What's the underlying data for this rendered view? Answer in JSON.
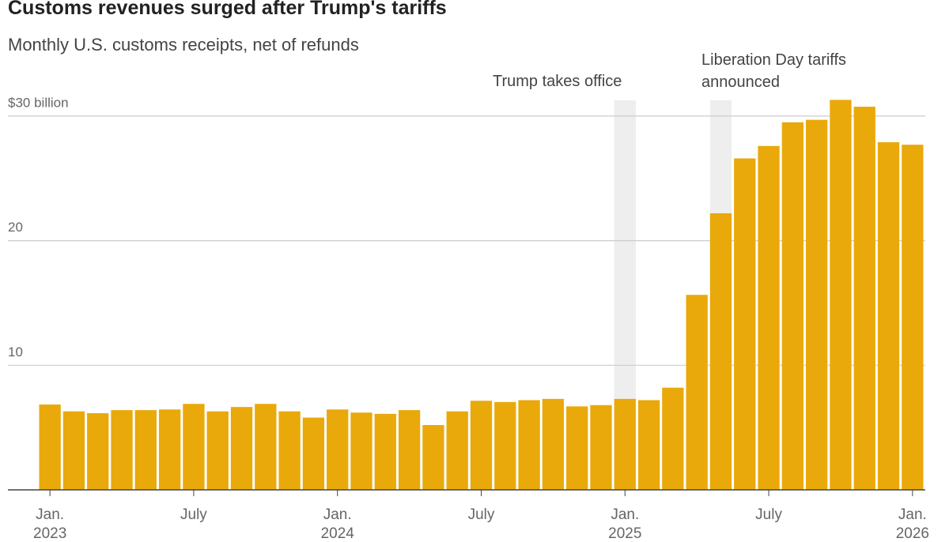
{
  "chart_data": {
    "type": "bar",
    "title": "Customs revenues surged after Trump's tariffs",
    "subtitle": "Monthly U.S. customs receipts, net of refunds",
    "annotations": [
      "Trump takes office",
      "Liberation Day tariffs\nannounced"
    ],
    "categories": [
      "Jan.\n2023",
      null,
      null,
      null,
      null,
      null,
      "July",
      null,
      null,
      null,
      null,
      null,
      "Jan.\n2024",
      null,
      null,
      null,
      null,
      null,
      "July",
      null,
      null,
      null,
      null,
      null,
      "Jan.\n2025",
      null,
      null,
      null,
      null,
      null,
      "July",
      null,
      null,
      null,
      null,
      null,
      "Jan.\n2026"
    ],
    "values": [
      6.85,
      6.3,
      6.15,
      6.4,
      6.4,
      6.45,
      6.9,
      6.3,
      6.65,
      6.9,
      6.3,
      5.8,
      6.45,
      6.2,
      6.1,
      6.4,
      5.2,
      6.3,
      7.15,
      7.05,
      7.2,
      7.3,
      6.7,
      6.8,
      7.3,
      7.2,
      8.2,
      15.65,
      22.2,
      26.6,
      27.6,
      29.5,
      29.7,
      31.3,
      30.75,
      27.9,
      27.7
    ],
    "color": "#e9a90a",
    "ylim": [
      0,
      32
    ],
    "yticks": [
      10,
      20,
      {
        "value": 30,
        "label": "$30 billion"
      }
    ],
    "grid": true
  }
}
